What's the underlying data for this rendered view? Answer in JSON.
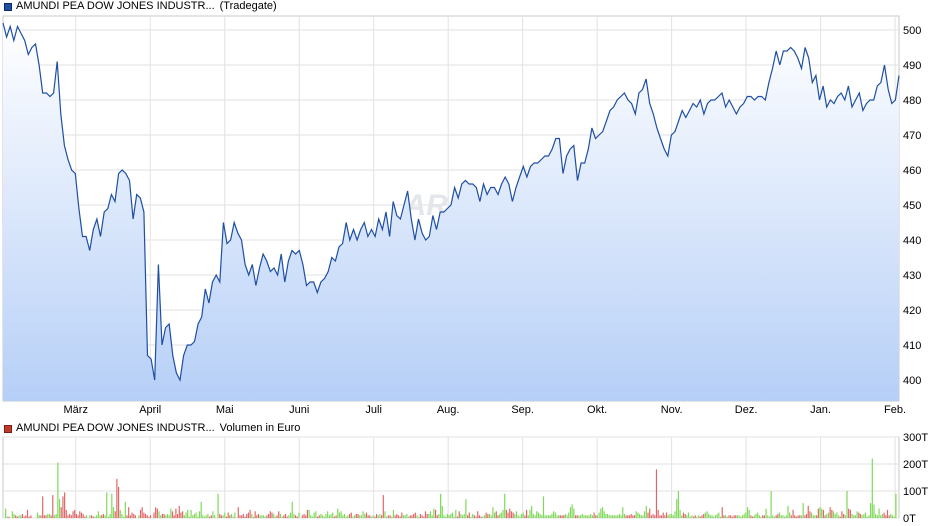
{
  "legend": {
    "price_series": "AMUNDI PEA DOW JONES INDUSTR...",
    "price_source": "(Tradegate)",
    "price_color": "#1e4fa3",
    "volume_series": "AMUNDI PEA DOW JONES INDUSTR...",
    "volume_unit": "Volumen in Euro",
    "volume_color": "#c0392b"
  },
  "watermark": "ARIVA",
  "chart_data": [
    {
      "type": "area",
      "x_ticks": [
        "März",
        "April",
        "Mai",
        "Juni",
        "Juli",
        "Aug.",
        "Sep.",
        "Okt.",
        "Nov.",
        "Dez.",
        "Jan.",
        "Feb."
      ],
      "y_ticks": [
        400,
        410,
        420,
        430,
        440,
        450,
        460,
        470,
        480,
        490,
        500
      ],
      "ylim": [
        394,
        504
      ],
      "grid": true,
      "series": [
        {
          "color": "#1e4fa3",
          "values": [
            502,
            498,
            501,
            497,
            501,
            499,
            497,
            493,
            495,
            496,
            490,
            482,
            482,
            481,
            482,
            491,
            476,
            467,
            463,
            460,
            459,
            449,
            441,
            441,
            437,
            443,
            446,
            441,
            448,
            449,
            453,
            451,
            459,
            460,
            459,
            457,
            446,
            453,
            452,
            448,
            407,
            406,
            400,
            433,
            410,
            415,
            416,
            407,
            402,
            400,
            407,
            410,
            410,
            411,
            416,
            418,
            426,
            422,
            428,
            430,
            428,
            445,
            439,
            440,
            445,
            442,
            440,
            433,
            430,
            433,
            427,
            432,
            436,
            434,
            431,
            432,
            430,
            436,
            428,
            434,
            437,
            436,
            437,
            433,
            427,
            428,
            428,
            425,
            428,
            429,
            431,
            435,
            434,
            438,
            439,
            445,
            440,
            443,
            440,
            443,
            445,
            441,
            443,
            441,
            446,
            443,
            448,
            441,
            451,
            447,
            446,
            450,
            454,
            446,
            440,
            446,
            442,
            440,
            441,
            447,
            443,
            448,
            448,
            449,
            450,
            455,
            452,
            456,
            457,
            456,
            456,
            455,
            451,
            456,
            453,
            455,
            455,
            453,
            456,
            458,
            456,
            451,
            455,
            458,
            461,
            458,
            461,
            462,
            462,
            463,
            464,
            464,
            466,
            469,
            469,
            459,
            464,
            466,
            467,
            457,
            462,
            462,
            466,
            472,
            469,
            470,
            471,
            474,
            477,
            478,
            480,
            481,
            482,
            480,
            479,
            476,
            482,
            483,
            486,
            479,
            476,
            472,
            469,
            466,
            464,
            470,
            471,
            474,
            477,
            475,
            477,
            479,
            478,
            480,
            476,
            479,
            480,
            480,
            481,
            482,
            478,
            480,
            478,
            476,
            478,
            479,
            481,
            481,
            480,
            481,
            481,
            480,
            485,
            489,
            494,
            490,
            494,
            494,
            495,
            494,
            492,
            489,
            495,
            492,
            485,
            487,
            480,
            484,
            478,
            480,
            479,
            481,
            482,
            480,
            484,
            478,
            480,
            482,
            477,
            479,
            480,
            480,
            484,
            485,
            490,
            483,
            479,
            480,
            487
          ]
        }
      ]
    },
    {
      "type": "bar",
      "y_ticks": [
        "0T",
        "100T",
        "200T",
        "300T"
      ],
      "ylim": [
        0,
        300
      ],
      "grid": true,
      "series_colors": {
        "up": "#7ed957",
        "down": "#e06666"
      },
      "values": [
        35,
        5,
        5,
        0,
        25,
        15,
        10,
        5,
        10,
        10,
        15,
        5,
        10,
        30,
        5,
        10,
        0,
        0,
        0,
        20,
        10,
        10,
        80,
        10,
        10,
        15,
        15,
        10,
        85,
        10,
        15,
        205,
        70,
        40,
        80,
        95,
        30,
        10,
        15,
        10,
        25,
        30,
        15,
        10,
        25,
        20,
        15,
        5,
        10,
        0,
        10,
        10,
        5,
        5,
        10,
        25,
        10,
        10,
        15,
        10,
        95,
        5,
        15,
        90,
        40,
        25,
        145,
        115,
        30,
        15,
        5,
        60,
        10,
        40,
        10,
        20,
        15,
        10,
        0,
        10,
        30,
        40,
        20,
        15,
        10,
        5,
        10,
        0,
        20,
        40,
        35,
        25,
        10,
        15,
        15,
        10,
        15,
        10,
        35,
        25,
        10,
        35,
        15,
        45,
        20,
        25,
        10,
        20,
        30,
        5,
        30,
        10,
        15,
        20,
        5,
        25,
        60,
        10,
        5,
        10,
        15,
        5,
        10,
        25,
        10,
        0,
        90,
        15,
        10,
        10,
        20,
        5,
        20,
        10,
        15,
        5,
        20,
        0,
        40,
        10,
        10,
        15,
        5,
        15,
        20,
        30,
        15,
        5,
        25,
        10,
        15,
        10,
        10,
        10,
        5,
        10,
        15,
        25,
        20,
        15,
        5,
        10,
        25,
        15,
        5,
        10,
        15,
        5,
        10,
        20,
        60,
        15,
        10,
        5,
        20,
        0,
        10,
        15,
        10,
        30,
        30,
        10,
        5,
        20,
        25,
        5,
        10,
        15,
        10,
        5,
        15,
        25,
        10,
        15,
        20,
        5,
        10,
        35,
        20,
        25,
        10,
        15,
        5,
        10,
        15,
        20,
        5,
        10,
        15,
        15,
        10,
        10,
        25,
        15,
        20,
        10,
        10,
        5,
        10,
        5,
        15,
        10,
        15,
        10,
        85,
        25,
        5,
        10,
        10,
        5,
        30,
        10,
        15,
        10,
        5,
        20,
        10,
        10,
        15,
        5,
        10,
        10,
        15,
        20,
        10,
        5,
        15,
        10,
        5,
        25,
        15,
        15,
        25,
        10,
        35,
        30,
        10,
        15,
        90,
        45,
        10,
        5,
        15,
        10,
        15,
        20,
        5,
        30,
        5,
        25,
        15,
        10,
        15,
        70,
        10,
        20,
        5,
        15,
        10,
        5,
        25,
        10,
        5,
        5,
        10,
        20,
        15,
        15,
        10,
        40,
        20,
        25,
        10,
        15,
        20,
        30,
        90,
        30,
        20,
        35,
        25,
        20,
        15,
        25,
        10,
        5,
        15,
        20,
        10,
        30,
        10,
        30,
        45,
        15,
        10,
        25,
        20,
        15,
        10,
        80,
        10,
        10,
        10,
        10,
        15,
        25,
        20,
        10,
        10,
        10,
        10,
        10,
        15,
        10,
        20,
        40,
        50,
        35,
        10,
        10,
        10,
        10,
        15,
        10,
        10,
        10,
        10,
        15,
        10,
        20,
        10,
        10,
        20,
        35,
        40,
        25,
        15,
        15,
        10,
        10,
        10,
        10,
        10,
        10,
        15,
        10,
        40,
        15,
        10,
        10,
        10,
        15,
        10,
        10,
        25,
        20,
        15,
        10,
        10,
        25,
        45,
        20,
        35,
        10,
        15,
        10,
        180,
        30,
        10,
        10,
        20,
        10,
        20,
        10,
        15,
        15,
        10,
        25,
        70,
        100,
        30,
        10,
        20,
        15,
        10,
        20,
        5,
        10,
        5,
        10,
        5,
        10,
        5,
        10,
        15,
        20,
        25,
        15,
        10,
        10,
        5,
        10,
        15,
        20,
        5,
        40,
        10,
        10,
        5,
        10,
        10,
        5,
        10,
        10,
        10,
        10,
        5,
        10,
        15,
        20,
        40,
        30,
        10,
        5,
        10,
        15,
        20,
        10,
        5,
        10,
        10,
        35,
        10,
        5,
        100,
        10,
        5,
        10,
        15,
        20,
        10,
        10,
        5,
        10,
        45,
        20,
        10,
        30,
        10,
        5,
        10,
        10,
        10,
        55,
        10,
        15,
        45,
        25,
        20,
        10,
        10,
        10,
        35,
        40,
        35,
        30,
        10,
        15,
        20,
        40,
        30,
        25,
        15,
        20,
        10,
        5,
        25,
        15,
        10,
        100,
        35,
        30,
        15,
        10,
        10,
        25,
        20,
        15,
        10,
        15,
        20,
        5,
        10,
        55,
        220,
        50,
        15,
        10,
        35,
        10,
        15,
        20,
        10,
        30,
        10,
        15,
        10,
        5,
        90
      ]
    }
  ]
}
